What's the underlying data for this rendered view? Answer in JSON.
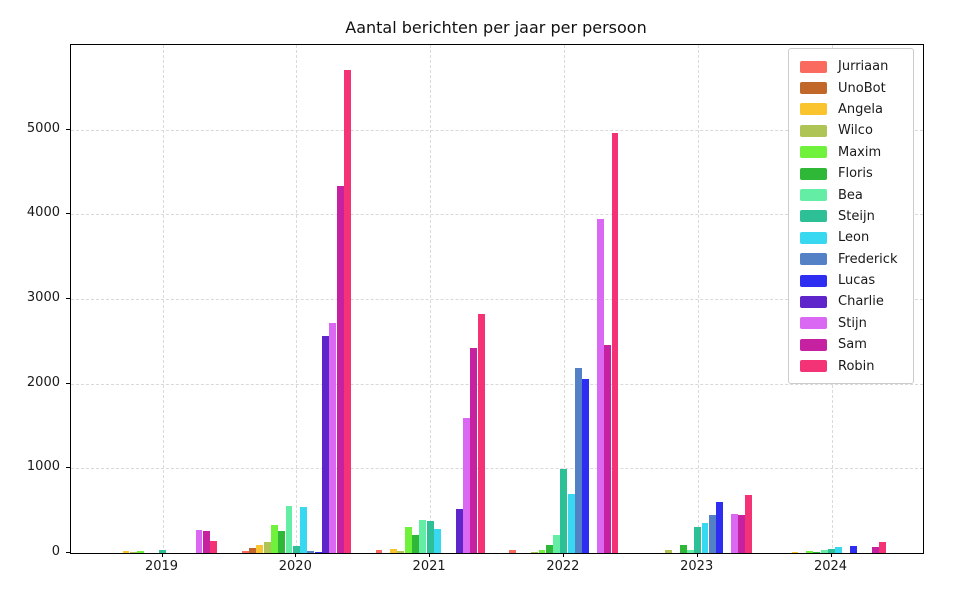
{
  "chart_data": {
    "type": "bar",
    "title": "Aantal berichten per jaar per persoon",
    "xlabel": "",
    "ylabel": "",
    "categories": [
      "2019",
      "2020",
      "2021",
      "2022",
      "2023",
      "2024"
    ],
    "yticks": [
      0,
      1000,
      2000,
      3000,
      4000,
      5000
    ],
    "ylim": [
      0,
      6000
    ],
    "grid": {
      "horizontal": true,
      "vertical": true,
      "style": "dashed"
    },
    "legend_position": "upper-right",
    "series": [
      {
        "name": "Jurriaan",
        "color": "#fa6a5f",
        "values": [
          0,
          20,
          40,
          35,
          0,
          0
        ]
      },
      {
        "name": "UnoBot",
        "color": "#c2672a",
        "values": [
          0,
          62,
          0,
          0,
          0,
          0
        ]
      },
      {
        "name": "Angela",
        "color": "#fac42f",
        "values": [
          18,
          95,
          45,
          0,
          0,
          15
        ]
      },
      {
        "name": "Wilco",
        "color": "#aec455",
        "values": [
          8,
          130,
          25,
          10,
          40,
          0
        ]
      },
      {
        "name": "Maxim",
        "color": "#70f23c",
        "values": [
          28,
          330,
          310,
          30,
          0,
          20
        ]
      },
      {
        "name": "Floris",
        "color": "#2fb837",
        "values": [
          0,
          265,
          210,
          100,
          90,
          15
        ]
      },
      {
        "name": "Bea",
        "color": "#64eea5",
        "values": [
          0,
          555,
          385,
          215,
          35,
          30
        ]
      },
      {
        "name": "Steijn",
        "color": "#2dc096",
        "values": [
          40,
          85,
          380,
          990,
          310,
          50
        ]
      },
      {
        "name": "Leon",
        "color": "#38d9f0",
        "values": [
          0,
          540,
          280,
          700,
          350,
          70
        ]
      },
      {
        "name": "Frederick",
        "color": "#5480c5",
        "values": [
          0,
          25,
          0,
          2190,
          445,
          0
        ]
      },
      {
        "name": "Lucas",
        "color": "#2e2ef2",
        "values": [
          0,
          15,
          0,
          2060,
          600,
          85
        ]
      },
      {
        "name": "Charlie",
        "color": "#5e25ca",
        "values": [
          0,
          2560,
          515,
          0,
          0,
          0
        ]
      },
      {
        "name": "Stijn",
        "color": "#da68f3",
        "values": [
          270,
          2720,
          1600,
          3940,
          465,
          0
        ]
      },
      {
        "name": "Sam",
        "color": "#c621a0",
        "values": [
          262,
          4340,
          2420,
          2460,
          450,
          75
        ]
      },
      {
        "name": "Robin",
        "color": "#f43376",
        "values": [
          138,
          5710,
          2820,
          4960,
          685,
          130
        ]
      }
    ]
  }
}
